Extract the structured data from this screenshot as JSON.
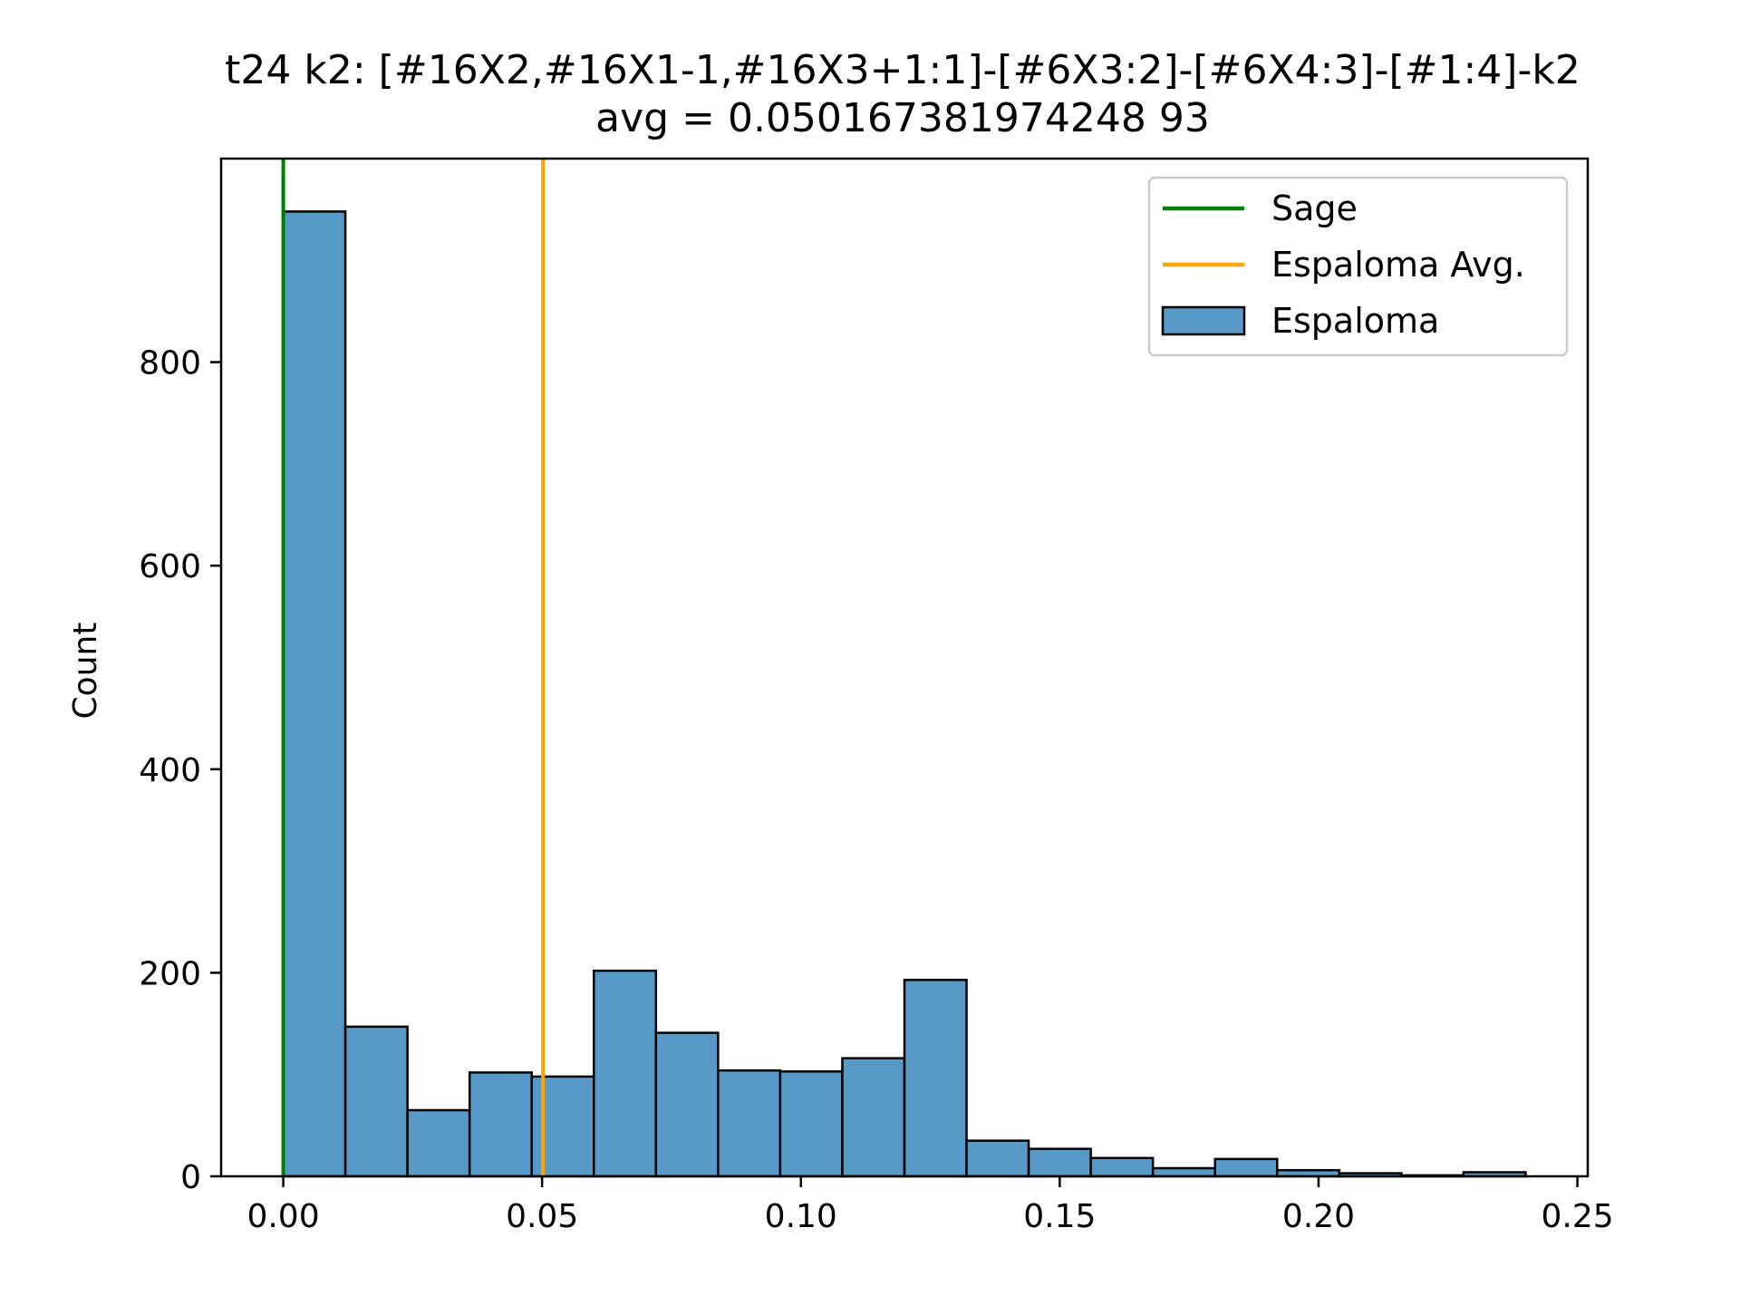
{
  "chart_data": {
    "type": "bar",
    "title": "t24 k2: [#16X2,#16X1-1,#16X3+1:1]-[#6X3:2]-[#6X4:3]-[#1:4]-k2",
    "subtitle": "avg = 0.050167381974248 93",
    "xlabel": "",
    "ylabel": "Count",
    "xlim": [
      -0.012,
      0.252
    ],
    "ylim": [
      0,
      1000
    ],
    "x_ticks": [
      "0.00",
      "0.05",
      "0.10",
      "0.15",
      "0.20",
      "0.25"
    ],
    "y_ticks": [
      "0",
      "200",
      "400",
      "600",
      "800"
    ],
    "grid": false,
    "legend_position": "top-right",
    "bin_edges": [
      0.0,
      0.012,
      0.024,
      0.036,
      0.048,
      0.06,
      0.072,
      0.084,
      0.096,
      0.108,
      0.12,
      0.132,
      0.144,
      0.156,
      0.168,
      0.18,
      0.192,
      0.204,
      0.216,
      0.228,
      0.24
    ],
    "counts": [
      948,
      147,
      65,
      102,
      98,
      202,
      141,
      104,
      103,
      116,
      193,
      35,
      27,
      18,
      8,
      17,
      6,
      3,
      1,
      4
    ],
    "lines": [
      {
        "name": "Sage",
        "x": 0.0,
        "color": "#008000"
      },
      {
        "name": "Espaloma Avg.",
        "x": 0.05016738197424893,
        "color": "#ffa500"
      }
    ],
    "series": [
      {
        "name": "Espaloma",
        "color": "#5799c7",
        "edge_color": "#000000"
      }
    ]
  }
}
